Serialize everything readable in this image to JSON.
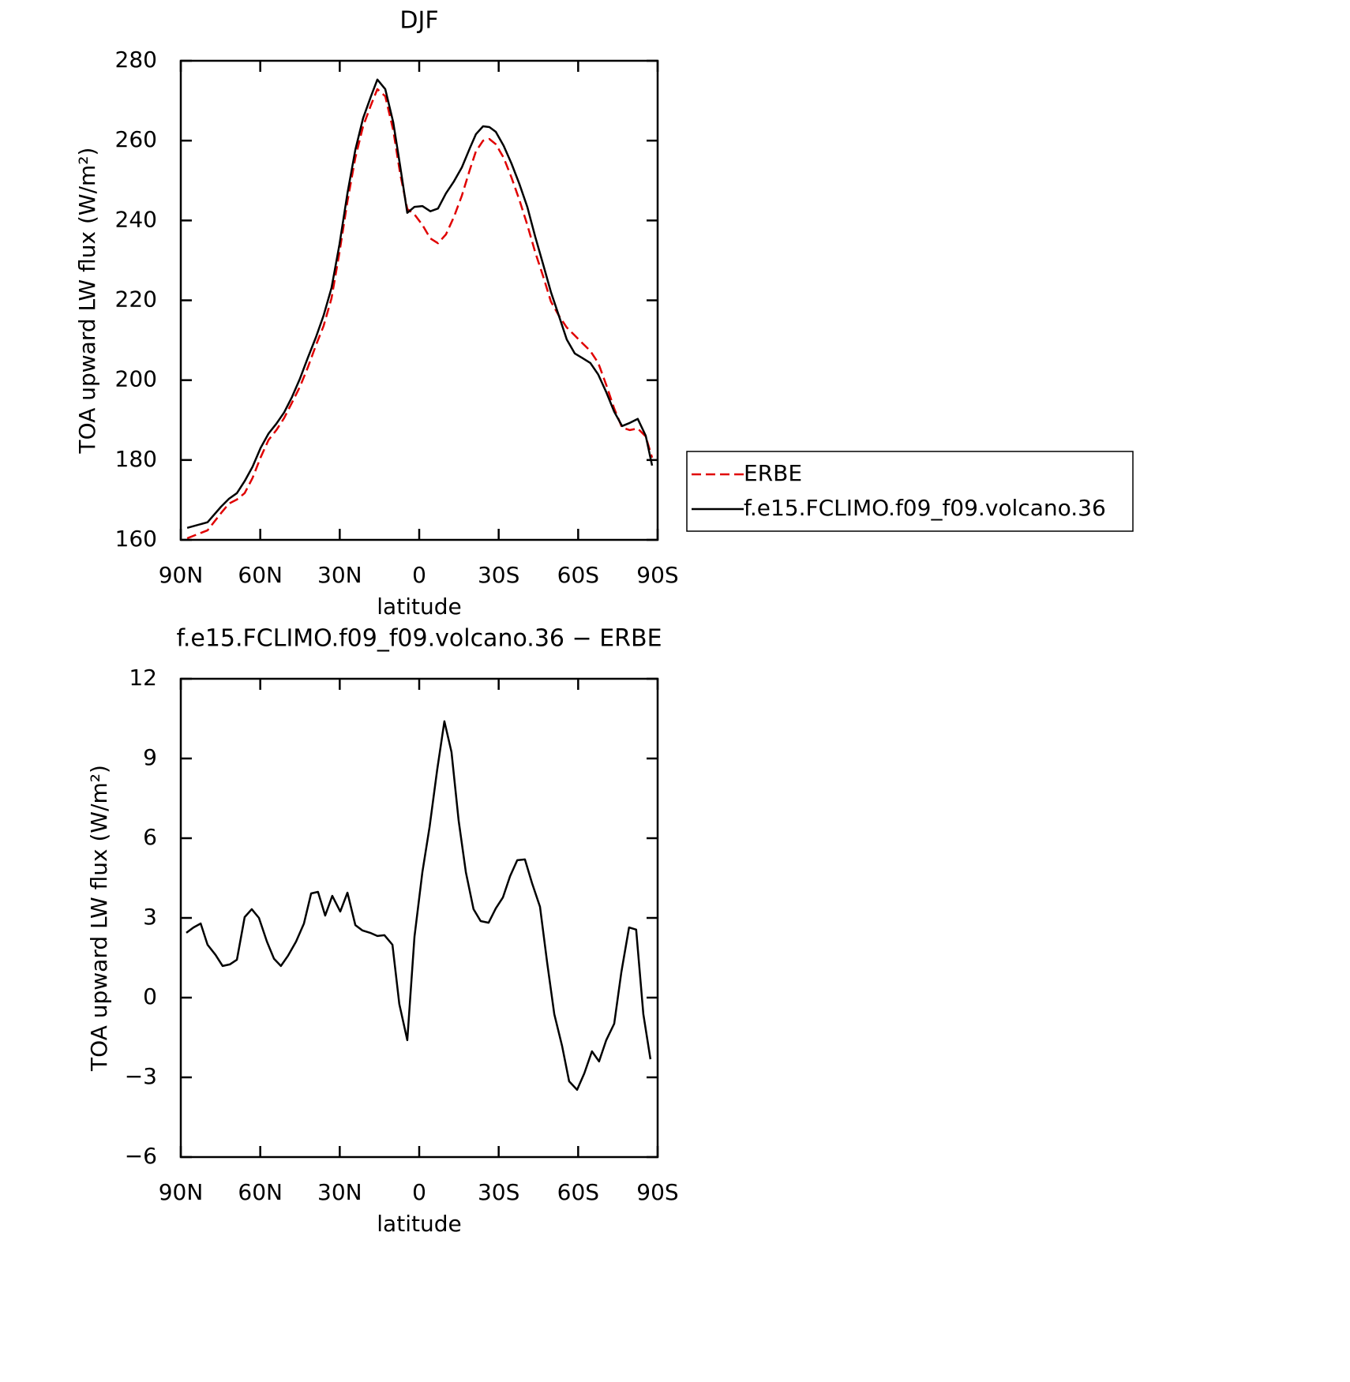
{
  "chart_data": [
    {
      "type": "line",
      "title": "DJF",
      "xlabel": "latitude",
      "ylabel": "TOA upward LW flux (W/m²)",
      "xlim": [
        90,
        -90
      ],
      "ylim": [
        160,
        280
      ],
      "xticks": [
        {
          "value": 90,
          "label": "90N"
        },
        {
          "value": 60,
          "label": "60N"
        },
        {
          "value": 30,
          "label": "30N"
        },
        0,
        {
          "value": -30,
          "label": "30S"
        },
        {
          "value": -60,
          "label": "60S"
        },
        {
          "value": -90,
          "label": "90S"
        }
      ],
      "yticks": [
        160,
        180,
        200,
        220,
        240,
        260,
        280
      ],
      "legend": "outside-right",
      "x": [
        87.6,
        79.9,
        74.8,
        71.8,
        68.8,
        65.9,
        62.9,
        59.9,
        56.9,
        53.9,
        51.0,
        48.0,
        45.0,
        42.0,
        39.0,
        36.1,
        33.1,
        30.1,
        27.1,
        24.1,
        21.2,
        18.2,
        15.8,
        12.8,
        9.8,
        7.2,
        4.5,
        1.8,
        -1.2,
        -4.2,
        -7.1,
        -10.1,
        -13.1,
        -16.1,
        -19.1,
        -21.4,
        -24.1,
        -26.5,
        -28.9,
        -31.9,
        -34.8,
        -37.8,
        -40.8,
        -43.8,
        -46.8,
        -49.7,
        -52.7,
        -55.7,
        -58.7,
        -61.7,
        -64.6,
        -67.6,
        -70.6,
        -73.6,
        -76.6,
        -79.5,
        -82.5,
        -85.5,
        -87.9
      ],
      "series": [
        {
          "name": "ERBE",
          "color": "#e00000",
          "line_style": "dashed",
          "values": [
            160.4,
            162.4,
            166.7,
            169.1,
            170.1,
            171.7,
            175.5,
            180.6,
            185.0,
            187.5,
            190.5,
            194.4,
            198.4,
            203.3,
            208.7,
            213.6,
            220.5,
            232.0,
            244.8,
            255.7,
            263.6,
            268.9,
            272.9,
            271.1,
            262.6,
            251.8,
            242.9,
            241.5,
            238.9,
            235.5,
            234.3,
            236.5,
            240.9,
            246.2,
            252.7,
            257.3,
            260.0,
            260.4,
            259.1,
            255.7,
            250.8,
            245.2,
            238.9,
            232.0,
            226.0,
            219.7,
            216.2,
            213.2,
            211.2,
            209.2,
            207.3,
            204.3,
            198.8,
            192.9,
            188.1,
            187.5,
            187.9,
            185.9,
            180.6
          ]
        },
        {
          "name": "f.e15.FCLIMO.f09_f09.volcano.36",
          "color": "#000000",
          "line_style": "solid",
          "values": [
            163.0,
            164.4,
            168.3,
            170.3,
            171.7,
            174.7,
            178.3,
            183.0,
            186.6,
            189.1,
            191.9,
            195.8,
            200.4,
            205.7,
            210.7,
            216.2,
            223.1,
            234.0,
            246.8,
            257.7,
            265.6,
            271.1,
            275.3,
            272.9,
            264.6,
            253.7,
            241.9,
            243.4,
            243.6,
            242.3,
            243.0,
            246.8,
            249.8,
            253.3,
            258.1,
            261.6,
            263.6,
            263.4,
            262.2,
            258.7,
            254.3,
            249.2,
            243.4,
            235.9,
            229.0,
            222.1,
            216.2,
            210.2,
            206.7,
            205.5,
            204.3,
            201.4,
            197.0,
            192.1,
            188.5,
            189.3,
            190.3,
            186.1,
            178.6
          ]
        }
      ]
    },
    {
      "type": "line",
      "title": "f.e15.FCLIMO.f09_f09.volcano.36 − ERBE",
      "xlabel": "latitude",
      "ylabel": "TOA upward LW flux (W/m²)",
      "xlim": [
        90,
        -90
      ],
      "ylim": [
        -6,
        12
      ],
      "xticks": [
        {
          "value": 90,
          "label": "90N"
        },
        {
          "value": 60,
          "label": "60N"
        },
        {
          "value": 30,
          "label": "30N"
        },
        0,
        {
          "value": -30,
          "label": "30S"
        },
        {
          "value": -60,
          "label": "60S"
        },
        {
          "value": -90,
          "label": "90S"
        }
      ],
      "yticks": [
        {
          "value": -6,
          "label": "−6"
        },
        {
          "value": -3,
          "label": "−3"
        },
        0,
        3,
        6,
        9,
        12
      ],
      "x": [
        87.9,
        85.2,
        82.5,
        79.9,
        76.9,
        74.2,
        71.5,
        68.8,
        65.9,
        63.2,
        60.5,
        57.5,
        54.8,
        52.2,
        49.5,
        46.5,
        43.5,
        40.8,
        38.2,
        35.5,
        32.8,
        29.8,
        27.1,
        24.1,
        21.5,
        18.5,
        15.8,
        13.1,
        10.1,
        7.5,
        4.5,
        1.8,
        -1.2,
        -3.9,
        -6.8,
        -9.5,
        -12.2,
        -14.9,
        -17.6,
        -20.5,
        -23.2,
        -26.2,
        -28.9,
        -31.6,
        -34.3,
        -37.0,
        -39.9,
        -42.6,
        -45.6,
        -48.3,
        -51.0,
        -53.9,
        -56.6,
        -59.6,
        -62.3,
        -65.2,
        -67.9,
        -70.6,
        -73.6,
        -76.3,
        -79.2,
        -81.9,
        -84.6,
        -87.3
      ],
      "series": [
        {
          "color": "#000000",
          "line_style": "solid",
          "values": [
            2.44,
            2.64,
            2.79,
            1.99,
            1.61,
            1.19,
            1.25,
            1.43,
            3.03,
            3.33,
            3.0,
            2.11,
            1.46,
            1.19,
            1.58,
            2.11,
            2.79,
            3.92,
            3.98,
            3.09,
            3.83,
            3.24,
            3.95,
            2.73,
            2.53,
            2.44,
            2.32,
            2.35,
            1.99,
            -0.24,
            -1.6,
            2.29,
            4.72,
            6.42,
            8.58,
            10.4,
            9.24,
            6.65,
            4.72,
            3.33,
            2.88,
            2.82,
            3.36,
            3.77,
            4.57,
            5.17,
            5.2,
            4.31,
            3.42,
            1.31,
            -0.62,
            -1.81,
            -3.15,
            -3.47,
            -2.85,
            -2.02,
            -2.4,
            -1.6,
            -0.98,
            0.95,
            2.64,
            2.56,
            -0.62,
            -2.32
          ]
        }
      ]
    }
  ]
}
